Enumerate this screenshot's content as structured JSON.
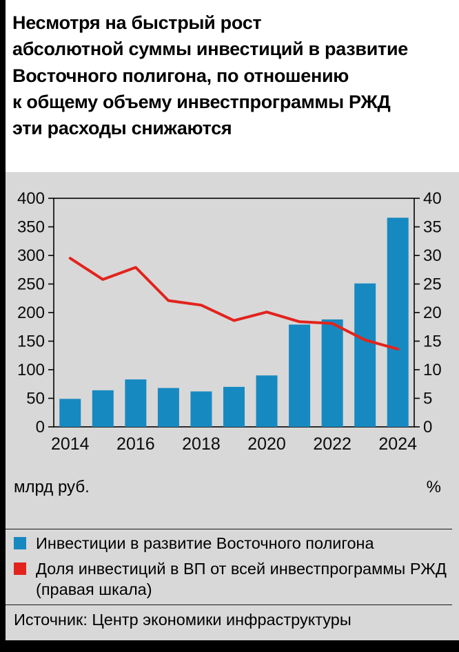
{
  "title": "Несмотря на быстрый рост\nабсолютной суммы инвестиций в развитие\nВосточного полигона, по отношению\nк общему объему инвестпрограммы РЖД\nэти расходы снижаются",
  "colors": {
    "background_gray": "#d8d8d8",
    "bar_blue": "#1789c1",
    "line_red": "#e2231d",
    "frame_black": "#000000"
  },
  "chart_data": {
    "type": "bar",
    "subtype": "combo bar + line, dual axis",
    "categories": [
      2014,
      2015,
      2016,
      2017,
      2018,
      2019,
      2020,
      2021,
      2022,
      2023,
      2024
    ],
    "x_tick_labels": [
      2014,
      2016,
      2018,
      2020,
      2022,
      2024
    ],
    "left_axis": {
      "min": 0,
      "max": 400,
      "step": 50,
      "unit": "млрд руб."
    },
    "right_axis": {
      "min": 0,
      "max": 40,
      "step": 5,
      "unit": "%"
    },
    "grid": false,
    "legend_position": "bottom",
    "series": [
      {
        "name": "Инвестиции в развитие Восточного полигона",
        "type": "bar",
        "axis": "left",
        "color": "#1789c1",
        "values": [
          49,
          64,
          83,
          68,
          62,
          70,
          90,
          179,
          188,
          251,
          366
        ]
      },
      {
        "name": "Доля инвестиций в ВП от всей инвестпрограммы РЖД (правая шкала)",
        "type": "line",
        "axis": "right",
        "color": "#e2231d",
        "values": [
          29.5,
          25.8,
          27.9,
          22.1,
          21.3,
          18.6,
          20.1,
          18.4,
          18.1,
          15.2,
          13.6
        ]
      }
    ]
  },
  "legend": [
    {
      "label": "Инвестиции в развитие Восточного полигона",
      "color": "#1789c1"
    },
    {
      "label": "Доля инвестиций в ВП от всей инвестпрограммы РЖД\n(правая шкала)",
      "color": "#e2231d"
    }
  ],
  "source": "Источник: Центр экономики инфраструктуры"
}
